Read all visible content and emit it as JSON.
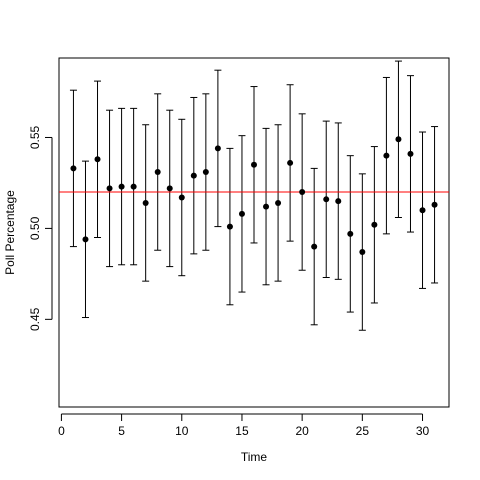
{
  "chart_data": {
    "type": "scatter",
    "title": "",
    "xlabel": "Time",
    "ylabel": "Poll Percentage",
    "xlim": [
      -0.2,
      32.2
    ],
    "ylim": [
      0.4018,
      0.5937
    ],
    "x_ticks": [
      0,
      5,
      10,
      15,
      20,
      25,
      30
    ],
    "y_ticks": [
      0.45,
      0.5,
      0.55
    ],
    "y_tick_labels": [
      "0.45",
      "0.50",
      "0.55"
    ],
    "grid": false,
    "legend": "none",
    "series": [
      {
        "x": [
          1,
          2,
          3,
          4,
          5,
          6,
          7,
          8,
          9,
          10,
          11,
          12,
          13,
          14,
          15,
          16,
          17,
          18,
          19,
          20,
          21,
          22,
          23,
          24,
          25,
          26,
          27,
          28,
          29,
          30,
          31
        ],
        "y": [
          0.533,
          0.494,
          0.538,
          0.522,
          0.523,
          0.523,
          0.514,
          0.531,
          0.522,
          0.517,
          0.529,
          0.531,
          0.544,
          0.501,
          0.508,
          0.535,
          0.512,
          0.514,
          0.536,
          0.52,
          0.49,
          0.516,
          0.515,
          0.497,
          0.487,
          0.502,
          0.54,
          0.549,
          0.541,
          0.51,
          0.513
        ],
        "lower": [
          0.49,
          0.451,
          0.495,
          0.479,
          0.48,
          0.48,
          0.471,
          0.488,
          0.479,
          0.474,
          0.486,
          0.488,
          0.501,
          0.458,
          0.465,
          0.492,
          0.469,
          0.471,
          0.493,
          0.477,
          0.447,
          0.473,
          0.472,
          0.454,
          0.444,
          0.459,
          0.497,
          0.506,
          0.498,
          0.467,
          0.47
        ],
        "upper": [
          0.576,
          0.537,
          0.581,
          0.565,
          0.566,
          0.566,
          0.557,
          0.574,
          0.565,
          0.56,
          0.572,
          0.574,
          0.587,
          0.544,
          0.551,
          0.578,
          0.555,
          0.557,
          0.579,
          0.563,
          0.533,
          0.559,
          0.558,
          0.54,
          0.53,
          0.545,
          0.583,
          0.592,
          0.584,
          0.553,
          0.556
        ]
      }
    ],
    "reference_line": {
      "y": 0.52
    },
    "colors": {
      "points": "#000000",
      "error_bars": "#000000",
      "reference_line": "#ff0000",
      "axes": "#000000"
    }
  }
}
